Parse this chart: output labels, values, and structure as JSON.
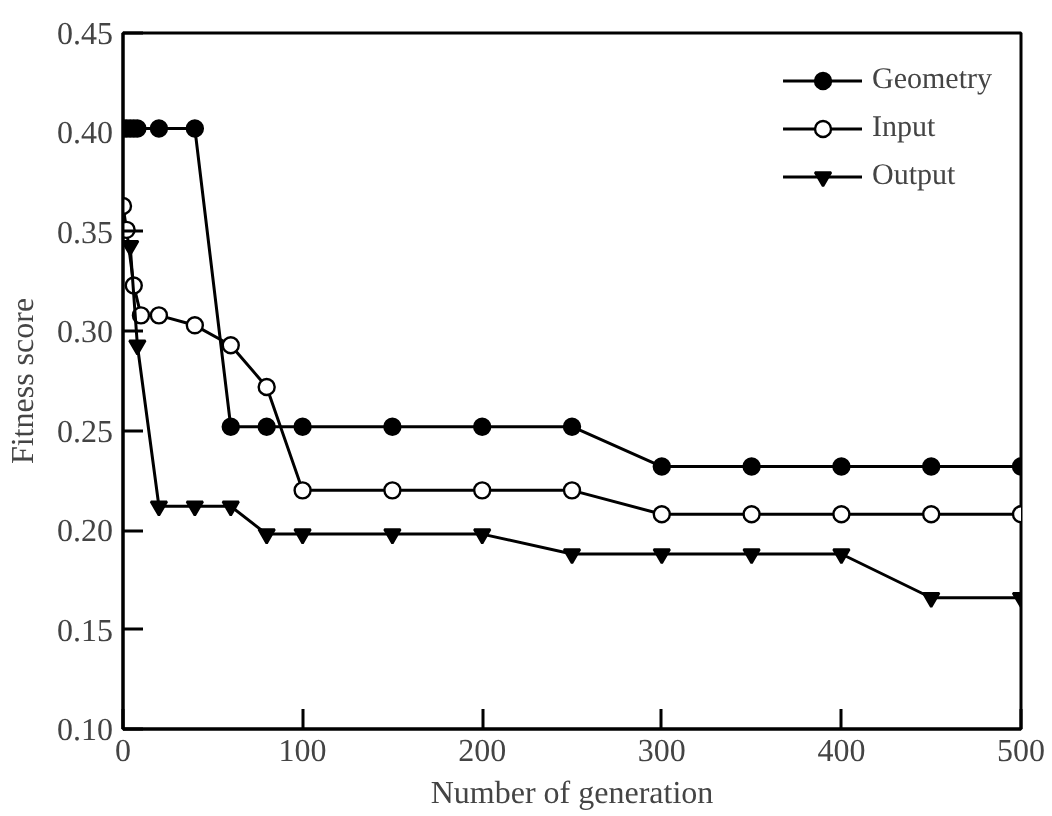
{
  "chart_data": {
    "type": "line",
    "xlabel": "Number of generation",
    "ylabel": "Fitness score",
    "xlim": [
      0,
      500
    ],
    "ylim": [
      0.1,
      0.45
    ],
    "xticks": [
      0,
      100,
      200,
      300,
      400,
      500
    ],
    "yticks": [
      {
        "value": 0.1,
        "label": "0.10"
      },
      {
        "value": 0.15,
        "label": "0.15"
      },
      {
        "value": 0.2,
        "label": "0.20"
      },
      {
        "value": 0.25,
        "label": "0.25"
      },
      {
        "value": 0.3,
        "label": "0.30"
      },
      {
        "value": 0.35,
        "label": "0.35"
      },
      {
        "value": 0.4,
        "label": "0.40"
      },
      {
        "value": 0.45,
        "label": "0.45"
      }
    ],
    "grid": false,
    "legend": "top right",
    "line_style": "solid",
    "series": [
      {
        "name": "Geometry",
        "color": "#000000",
        "marker": "circle",
        "x": [
          0,
          2,
          4,
          6,
          8,
          20,
          40,
          60,
          80,
          100,
          150,
          200,
          250,
          300,
          350,
          400,
          450,
          500
        ],
        "values": [
          0.402,
          0.402,
          0.402,
          0.402,
          0.402,
          0.402,
          0.402,
          0.252,
          0.252,
          0.252,
          0.252,
          0.252,
          0.252,
          0.232,
          0.232,
          0.232,
          0.232,
          0.232
        ]
      },
      {
        "name": "Input",
        "color": "#000000",
        "marker": "circle",
        "x": [
          0,
          2,
          6,
          10,
          20,
          40,
          60,
          80,
          100,
          150,
          200,
          250,
          300,
          350,
          400,
          450,
          500
        ],
        "values": [
          0.363,
          0.351,
          0.323,
          0.308,
          0.308,
          0.303,
          0.293,
          0.272,
          0.22,
          0.22,
          0.22,
          0.22,
          0.208,
          0.208,
          0.208,
          0.208,
          0.208
        ]
      },
      {
        "name": "Output",
        "color": "#000000",
        "marker": "triangle",
        "x": [
          4,
          8,
          20,
          40,
          60,
          80,
          100,
          150,
          200,
          250,
          300,
          350,
          400,
          450,
          500
        ],
        "values": [
          0.343,
          0.293,
          0.212,
          0.212,
          0.212,
          0.198,
          0.198,
          0.198,
          0.198,
          0.188,
          0.188,
          0.188,
          0.188,
          0.166,
          0.166
        ]
      }
    ]
  }
}
